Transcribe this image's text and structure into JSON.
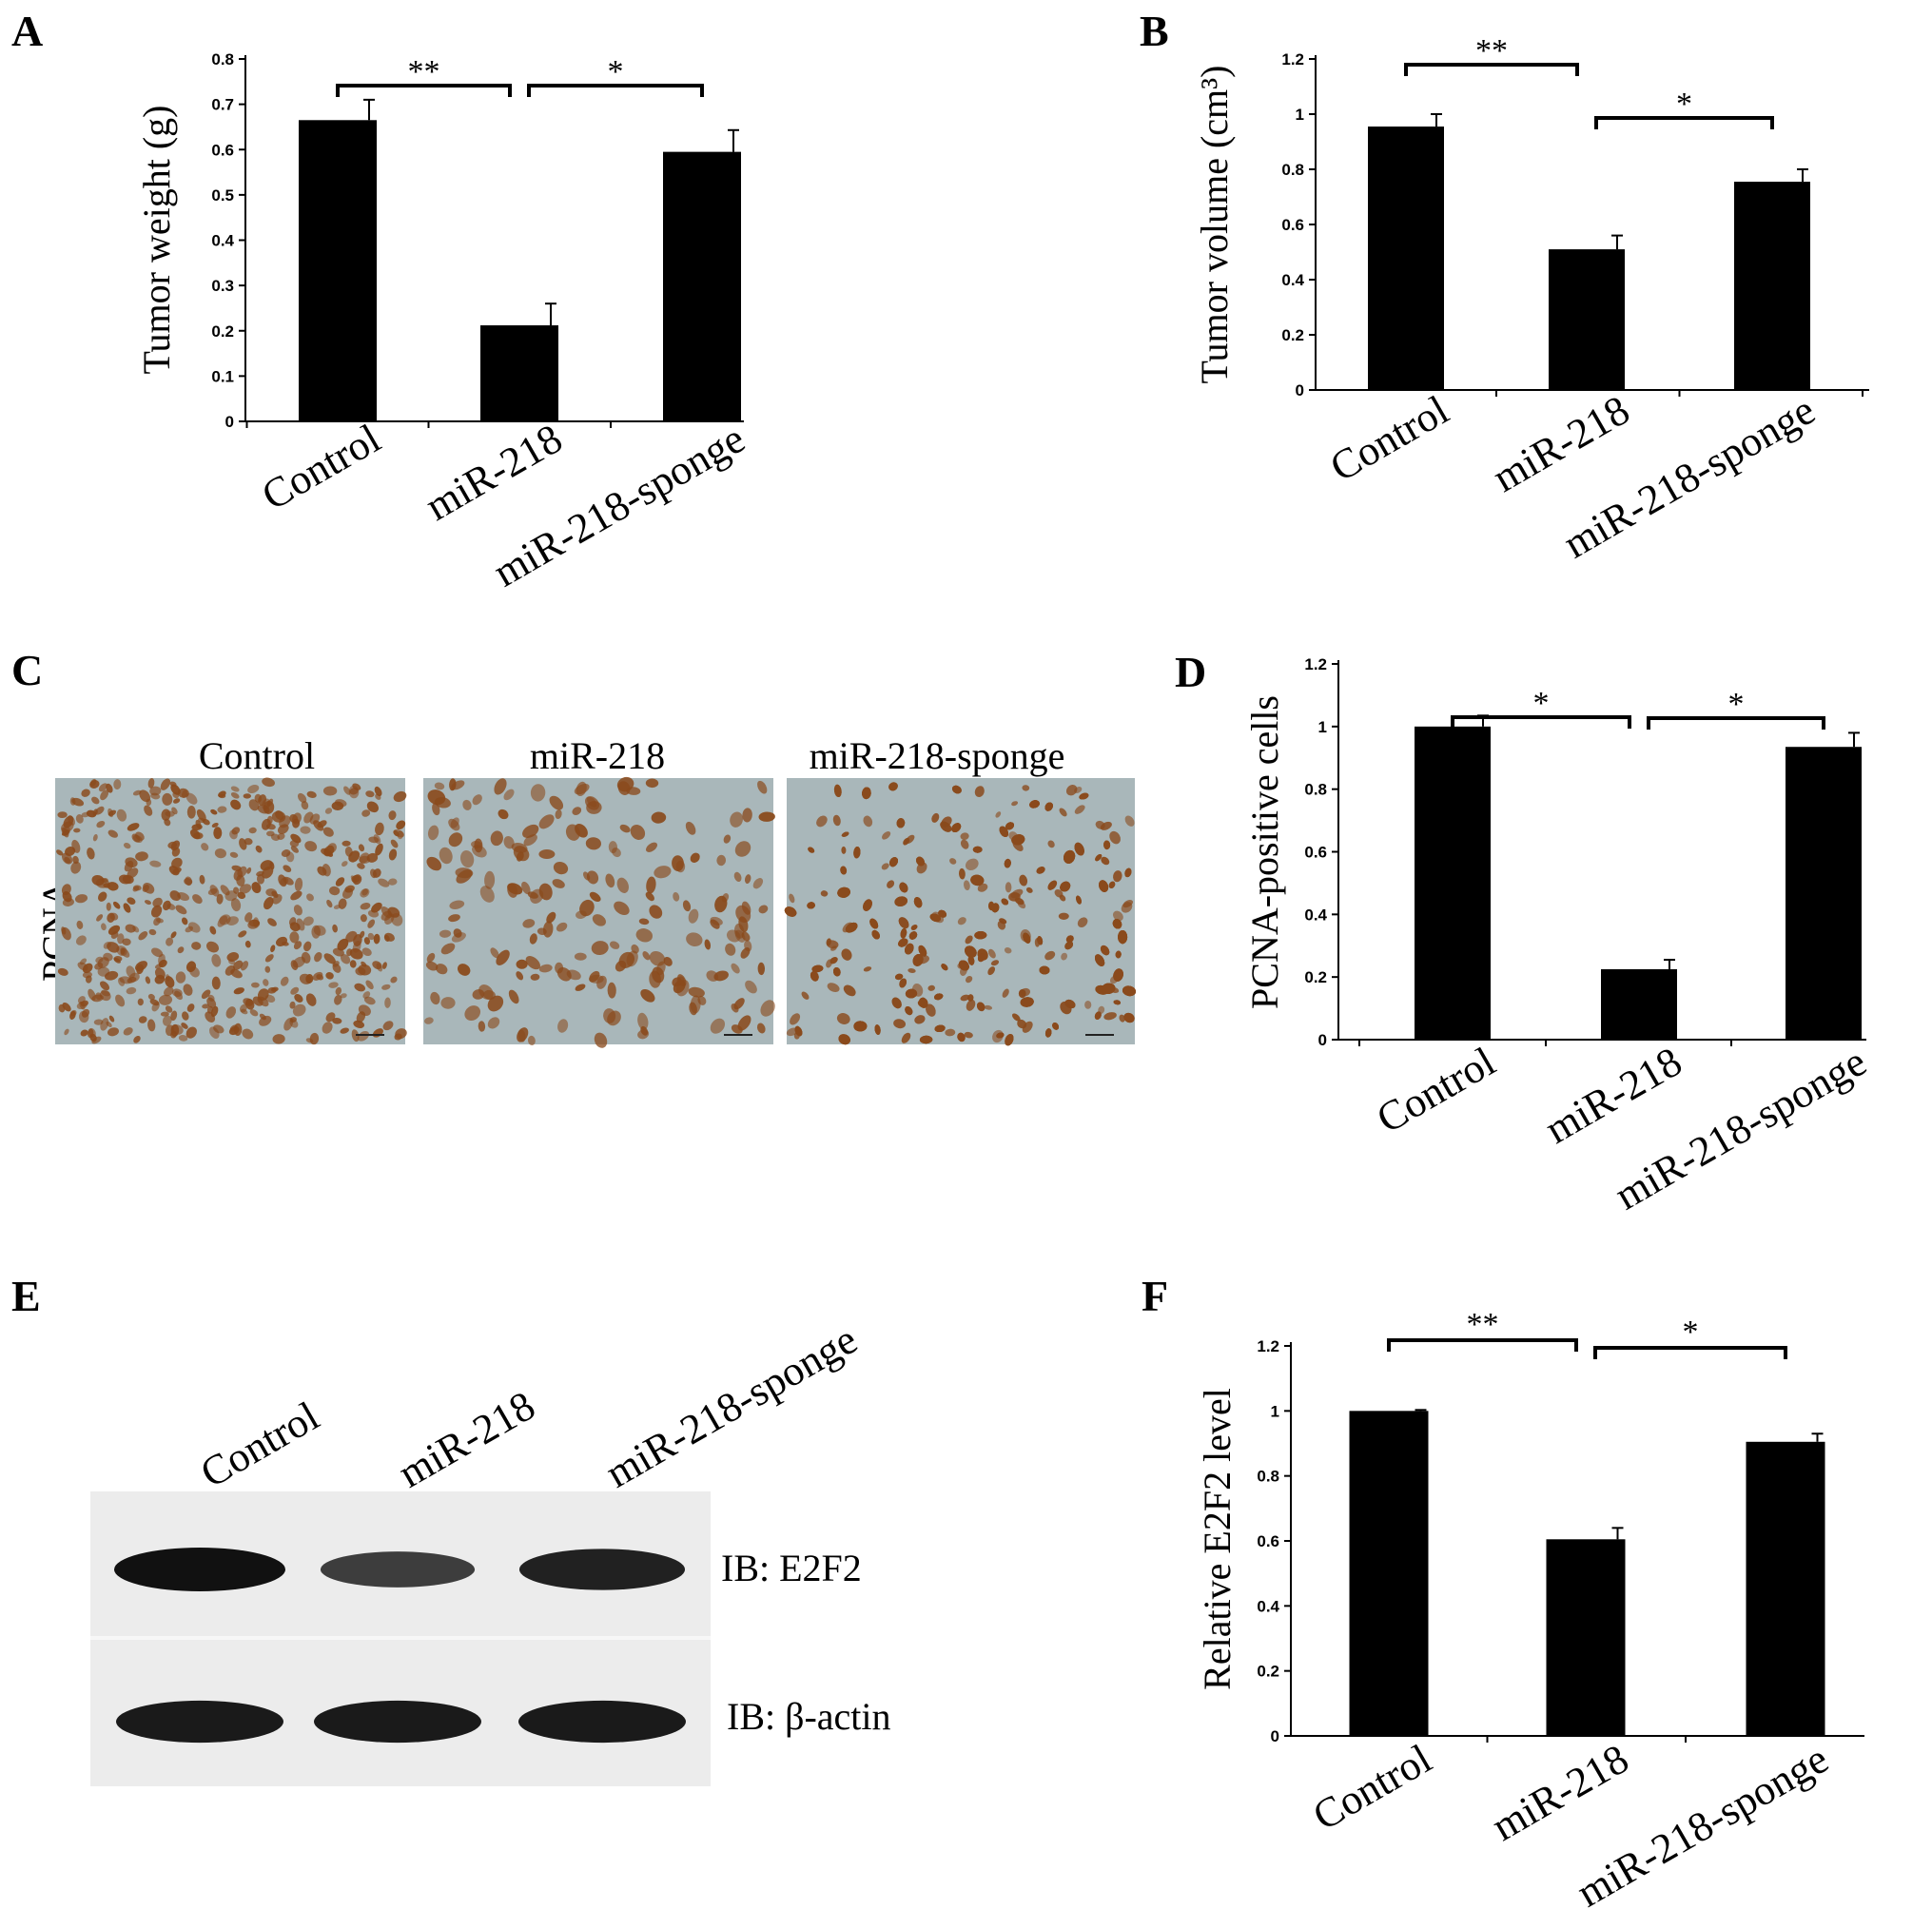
{
  "panels": {
    "A": "A",
    "B": "B",
    "C": "C",
    "D": "D",
    "E": "E",
    "F": "F"
  },
  "chart_data": [
    {
      "id": "A",
      "type": "bar",
      "categories": [
        "Control",
        "miR-218",
        "miR-218-sponge"
      ],
      "values": [
        0.665,
        0.212,
        0.595
      ],
      "errors": [
        0.045,
        0.048,
        0.048
      ],
      "ylabel": "Tumor weight (g)",
      "ylim": [
        0,
        0.8
      ],
      "yticks": [
        "0",
        "0.1",
        "0.2",
        "0.3",
        "0.4",
        "0.5",
        "0.6",
        "0.7",
        "0.8"
      ],
      "significance": [
        {
          "between": [
            "Control",
            "miR-218"
          ],
          "label": "**"
        },
        {
          "between": [
            "miR-218",
            "miR-218-sponge"
          ],
          "label": "*"
        }
      ]
    },
    {
      "id": "B",
      "type": "bar",
      "categories": [
        "Control",
        "miR-218",
        "miR-218-sponge"
      ],
      "values": [
        0.955,
        0.51,
        0.755
      ],
      "errors": [
        0.045,
        0.05,
        0.045
      ],
      "ylabel": "Tumor volume (cm³)",
      "ylim": [
        0,
        1.2
      ],
      "yticks": [
        "0",
        "0.2",
        "0.4",
        "0.6",
        "0.8",
        "1",
        "1.2"
      ],
      "significance": [
        {
          "between": [
            "Control",
            "miR-218"
          ],
          "label": "**"
        },
        {
          "between": [
            "miR-218",
            "miR-218-sponge"
          ],
          "label": "*"
        }
      ]
    },
    {
      "id": "D",
      "type": "bar",
      "categories": [
        "Control",
        "miR-218",
        "miR-218-sponge"
      ],
      "values": [
        1.0,
        0.225,
        0.935
      ],
      "errors": [
        0.035,
        0.03,
        0.045
      ],
      "ylabel": "PCNA-positive cells",
      "ylim": [
        0,
        1.2
      ],
      "yticks": [
        "0",
        "0.2",
        "0.4",
        "0.6",
        "0.8",
        "1",
        "1.2"
      ],
      "significance": [
        {
          "between": [
            "Control",
            "miR-218"
          ],
          "label": "*"
        },
        {
          "between": [
            "miR-218",
            "miR-218-sponge"
          ],
          "label": "*"
        }
      ]
    },
    {
      "id": "F",
      "type": "bar",
      "categories": [
        "Control",
        "miR-218",
        "miR-218-sponge"
      ],
      "values": [
        1.0,
        0.605,
        0.905
      ],
      "errors": [
        0.003,
        0.035,
        0.025
      ],
      "ylabel": "Relative E2F2 level",
      "ylim": [
        0,
        1.2
      ],
      "yticks": [
        "0",
        "0.2",
        "0.4",
        "0.6",
        "0.8",
        "1",
        "1.2"
      ],
      "significance": [
        {
          "between": [
            "Control",
            "miR-218"
          ],
          "label": "**"
        },
        {
          "between": [
            "miR-218",
            "miR-218-sponge"
          ],
          "label": "*"
        }
      ]
    }
  ],
  "panel_c": {
    "row_label": "PCNA",
    "columns": [
      "Control",
      "miR-218",
      "miR-218-sponge"
    ]
  },
  "panel_e": {
    "columns": [
      "Control",
      "miR-218",
      "miR-218-sponge"
    ],
    "bands": [
      {
        "label": "IB: E2F2",
        "intensity": [
          1.0,
          0.55,
          0.85
        ]
      },
      {
        "label": "IB: β-actin",
        "intensity": [
          0.9,
          0.9,
          0.9
        ]
      }
    ]
  },
  "colors": {
    "bar": "#000000",
    "tissue": "#a9b7ba",
    "nucleus": "#8a4a1c"
  }
}
